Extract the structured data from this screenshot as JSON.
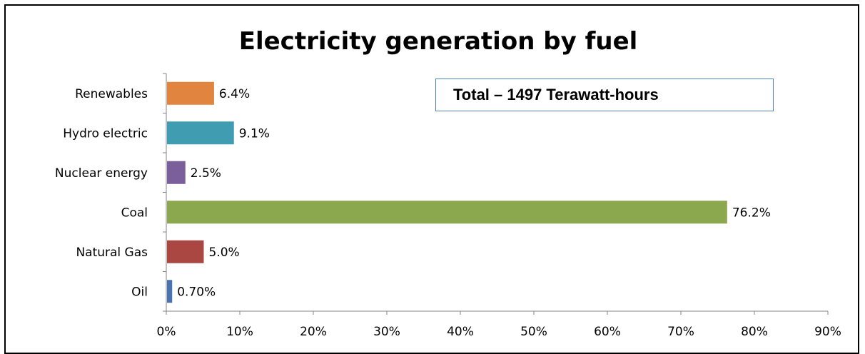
{
  "chart_data": {
    "type": "bar",
    "orientation": "horizontal",
    "title": "Electricity generation by fuel",
    "annotation": "Total – 1497 Terawatt-hours",
    "categories": [
      "Renewables",
      "Hydro electric",
      "Nuclear energy",
      "Coal",
      "Natural Gas",
      "Oil"
    ],
    "values": [
      6.4,
      9.1,
      2.5,
      76.2,
      5.0,
      0.7
    ],
    "data_labels": [
      "6.4%",
      "9.1%",
      "2.5%",
      "76.2%",
      "5.0%",
      "0.70%"
    ],
    "colors": [
      "#e0843f",
      "#3f9cb1",
      "#7a5f9a",
      "#8ba84e",
      "#ab4743",
      "#4a72b0"
    ],
    "xlim": [
      0,
      90
    ],
    "xticks": [
      "0%",
      "10%",
      "20%",
      "30%",
      "40%",
      "50%",
      "60%",
      "70%",
      "80%",
      "90%"
    ],
    "xlabel": "",
    "ylabel": "",
    "grid": false,
    "legend": "none"
  }
}
